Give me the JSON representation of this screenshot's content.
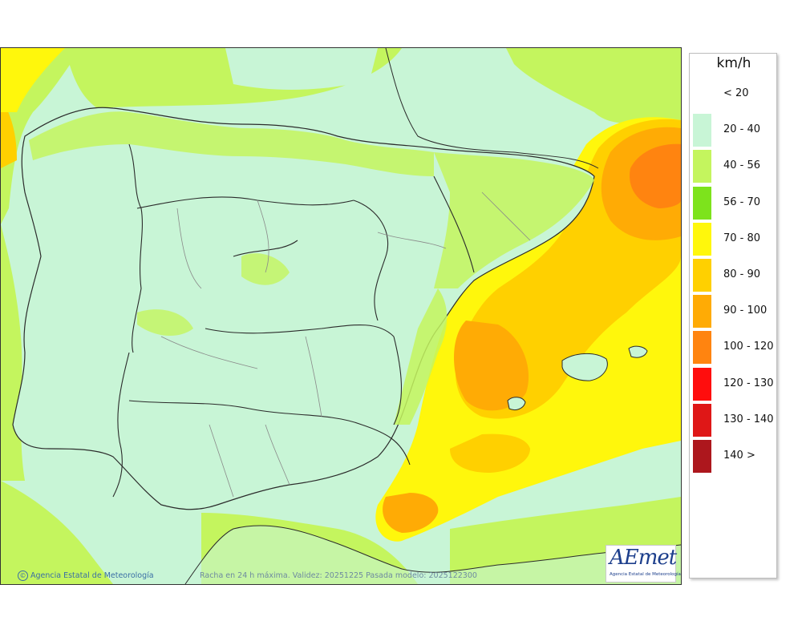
{
  "legend": {
    "unit": "km/h",
    "items": [
      {
        "label": "< 20",
        "color": "#ffffff"
      },
      {
        "label": "20 - 40",
        "color": "#c8f5d6"
      },
      {
        "label": "40 - 56",
        "color": "#c4f55e"
      },
      {
        "label": "56 - 70",
        "color": "#7de31c"
      },
      {
        "label": "70 - 80",
        "color": "#fff70c"
      },
      {
        "label": "80 - 90",
        "color": "#ffd000"
      },
      {
        "label": "90 - 100",
        "color": "#ffab05"
      },
      {
        "label": "100 - 120",
        "color": "#ff8410"
      },
      {
        "label": "120 - 130",
        "color": "#ff0d0d"
      },
      {
        "label": "130 - 140",
        "color": "#df1717"
      },
      {
        "label": "140 >",
        "color": "#ad171d"
      }
    ]
  },
  "footer": {
    "credit": "Agencia Estatal de Meteorología",
    "caption": "Racha en 24 h máxima. Validez: 20251225 Pasada modelo: 2025122300"
  },
  "logo": {
    "word": "AEmet",
    "subtitle": "Agencia Estatal de Meteorología"
  },
  "map": {
    "region": "Iberian Peninsula and Balearic Islands",
    "variable": "wind gusts",
    "colors": {
      "land_base": "#c8f5d6",
      "band_40_56": "#c4f55e",
      "band_56_70": "#7de31c",
      "band_70_80": "#fff70c",
      "band_80_90": "#ffd000",
      "band_90_100": "#ffab05",
      "band_100_120": "#ff8410",
      "border_line": "#2b2b2b",
      "province_line": "#8a8a8a"
    }
  }
}
